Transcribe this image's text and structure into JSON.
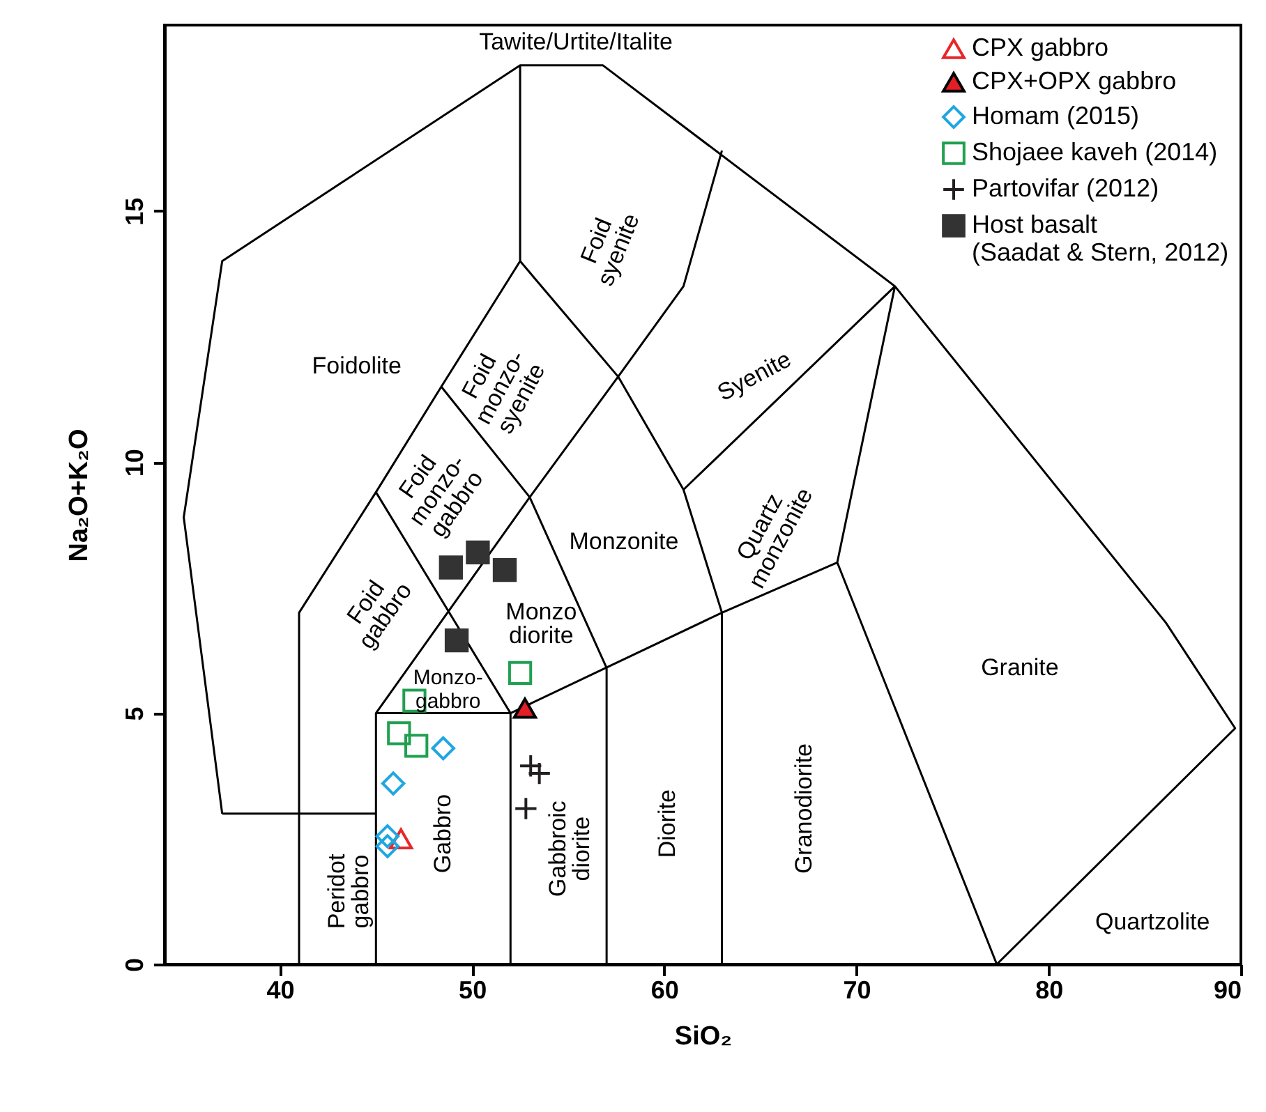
{
  "chart_data": {
    "type": "scatter",
    "xlabel": "SiO₂",
    "ylabel": "Na₂O+K₂O",
    "xlim": [
      34,
      90
    ],
    "ylim": [
      0,
      18.7
    ],
    "xticks": [
      40,
      50,
      60,
      70,
      80,
      90
    ],
    "yticks": [
      0,
      5,
      10,
      15
    ],
    "grid": false,
    "legend": "top right",
    "series": [
      {
        "type": "line",
        "color": "#000000",
        "x": [
          37,
          35,
          37,
          52.5,
          56.8,
          72,
          86.1,
          89.7,
          77.3,
          null,
          37,
          45,
          null,
          41,
          41,
          45,
          48.4,
          52.5,
          52.5,
          null,
          52.5,
          57.6,
          61,
          63,
          null,
          48.4,
          53,
          57.6,
          61,
          63,
          null,
          61,
          72,
          69,
          77.3,
          null,
          45,
          52,
          null,
          45,
          53,
          57,
          null,
          45,
          45,
          52,
          63,
          69,
          null,
          52,
          52,
          null,
          57,
          57,
          null,
          63,
          63
        ],
        "values": [
          3,
          8.9,
          14,
          17.9,
          17.9,
          13.5,
          6.8,
          4.7,
          0,
          null,
          3,
          3,
          null,
          0,
          7,
          9.4,
          11.5,
          14,
          17.9,
          null,
          14,
          11.7,
          13.5,
          16.2,
          null,
          11.5,
          9.3,
          11.7,
          9.45,
          7,
          null,
          9.45,
          13.5,
          8,
          0,
          null,
          9.4,
          5,
          null,
          5,
          9.3,
          5.9,
          null,
          0,
          5,
          5,
          7,
          8,
          null,
          0,
          5,
          null,
          0,
          5.9,
          null,
          0,
          7
        ]
      },
      {
        "name": "CPX gabbro",
        "marker": "triangle",
        "color": "#e8262a",
        "x": [
          46.3
        ],
        "values": [
          2.5
        ]
      },
      {
        "name": "CPX+OPX gabbro",
        "marker": "triangle",
        "color": "#e31e24",
        "x": [
          52.75
        ],
        "values": [
          5.1
        ]
      },
      {
        "name": "Homam (2015)",
        "marker": "diamond",
        "color": "#1ea7e1",
        "x": [
          48.5,
          45.9,
          45.6,
          45.6
        ],
        "values": [
          4.3,
          3.6,
          2.55,
          2.35
        ]
      },
      {
        "name": "Shojaee kaveh (2014)",
        "marker": "square",
        "color": "#20a050",
        "x": [
          52.5,
          47,
          46.2,
          47.1
        ],
        "values": [
          5.8,
          5.25,
          4.6,
          4.35
        ]
      },
      {
        "name": "Partovifar (2012)",
        "marker": "cross",
        "color": "#231f20",
        "x": [
          53.05,
          53.5,
          52.8
        ],
        "values": [
          3.95,
          3.8,
          3.1
        ]
      },
      {
        "name": "Host basalt (Saadat & Stern, 2012)",
        "marker": "square",
        "color": "#333333",
        "x": [
          48.9,
          50.3,
          51.7,
          49.2
        ],
        "values": [
          7.9,
          8.2,
          7.85,
          6.45
        ]
      }
    ],
    "annotations": [
      "Tawite/Urtite/Italite",
      "Foid\nsyenite",
      "Foidolite",
      "Foid\nmonzo-\nsyenite",
      "Syenite",
      "Foid\nmonzo-\ngabbro",
      "Monzonite",
      "Quartz\nmonzonite",
      "Foid\ngabbro",
      "Monzo\ndiorite",
      "Monzo-\ngabbro",
      "Granite",
      "Peridot\ngabbro",
      "Gabbro",
      "Gabbroic\ndiorite",
      "Diorite",
      "Granodiorite",
      "Quartzolite"
    ]
  }
}
